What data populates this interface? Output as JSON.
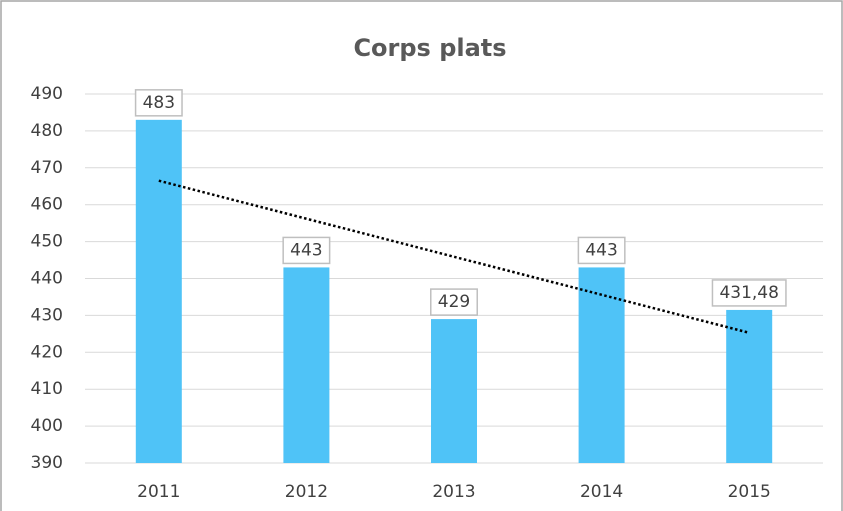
{
  "chart_data": {
    "type": "bar",
    "title": "Corps plats",
    "categories": [
      "2011",
      "2012",
      "2013",
      "2014",
      "2015"
    ],
    "values": [
      483,
      443,
      429,
      443,
      431.48
    ],
    "value_labels": [
      "483",
      "443",
      "429",
      "443",
      "431,48"
    ],
    "color": "#4fc3f7",
    "ylim": [
      390,
      490
    ],
    "yticks": [
      390,
      400,
      410,
      420,
      430,
      440,
      450,
      460,
      470,
      480,
      490
    ],
    "grid": true,
    "trendline": "linear"
  }
}
